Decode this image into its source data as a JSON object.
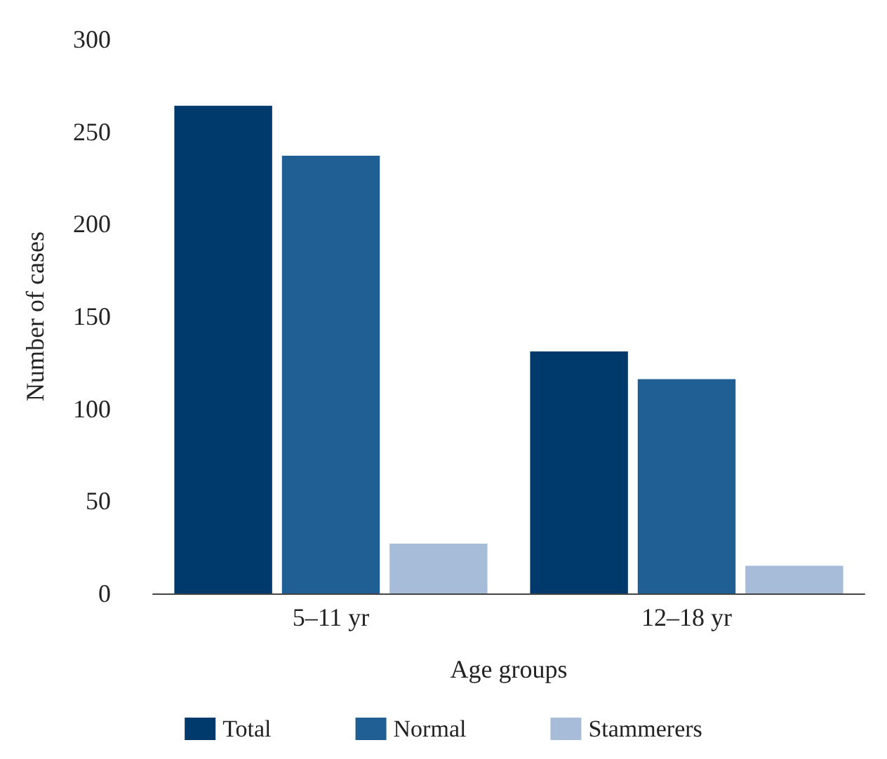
{
  "chart_data": {
    "type": "bar",
    "xlabel": "Age groups",
    "ylabel": "Number of cases",
    "categories": [
      "5–11 yr",
      "12–18 yr"
    ],
    "series": [
      {
        "name": "Total",
        "color": "#003a6c",
        "values": [
          264,
          131
        ]
      },
      {
        "name": "Normal",
        "color": "#1f5f94",
        "values": [
          237,
          116
        ]
      },
      {
        "name": "Stammerers",
        "color": "#a7bcd8",
        "values": [
          27,
          15
        ]
      }
    ],
    "ylim": [
      0,
      300
    ],
    "yticks": [
      0,
      50,
      100,
      150,
      200,
      250,
      300
    ],
    "grid": false,
    "legend": "bottom"
  }
}
